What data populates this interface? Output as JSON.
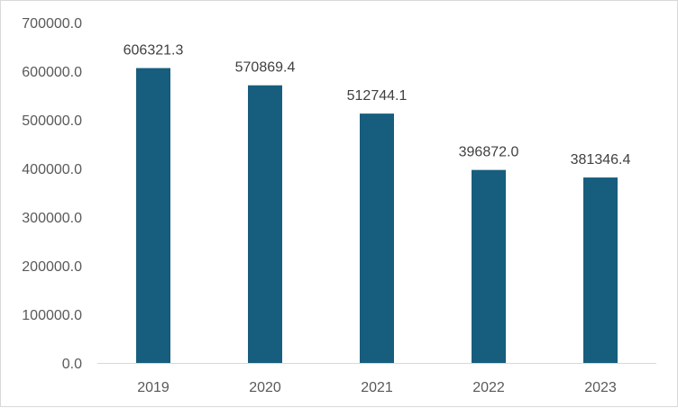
{
  "chart_data": {
    "type": "bar",
    "categories": [
      "2019",
      "2020",
      "2021",
      "2022",
      "2023"
    ],
    "values": [
      606321.3,
      570869.4,
      512744.1,
      396872.0,
      381346.4
    ],
    "data_labels": [
      "606321.3",
      "570869.4",
      "512744.1",
      "396872.0",
      "381346.4"
    ],
    "y_ticks": [
      "0.0",
      "100000.0",
      "200000.0",
      "300000.0",
      "400000.0",
      "500000.0",
      "600000.0",
      "700000.0"
    ],
    "ylim": [
      0,
      700000
    ],
    "grid": false,
    "legend": "none",
    "bar_color": "#175e7e",
    "axis_color": "#d9d9d9"
  }
}
